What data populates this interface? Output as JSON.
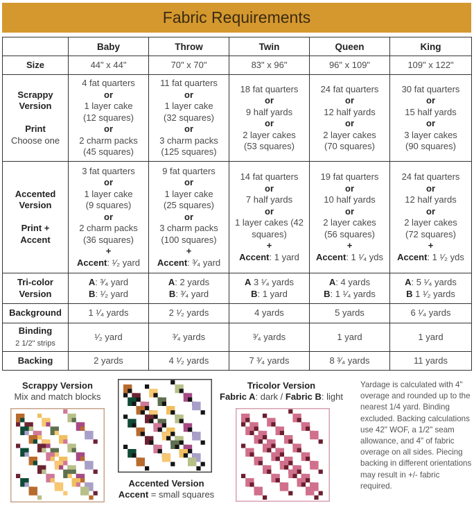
{
  "title": "Fabric Requirements",
  "colors": {
    "banner": "#D4982E"
  },
  "columns": [
    "",
    "Baby",
    "Throw",
    "Twin",
    "Queen",
    "King"
  ],
  "rows": [
    {
      "label": [
        [
          "Size"
        ]
      ],
      "h": 27,
      "cells": [
        [
          [
            "44\" x 44\""
          ]
        ],
        [
          [
            "70\" x 70\""
          ]
        ],
        [
          [
            "83\" x 96\""
          ]
        ],
        [
          [
            "96\" x 109\""
          ]
        ],
        [
          [
            "109\" x 122\""
          ]
        ]
      ]
    },
    {
      "label": [
        [
          "Scrappy"
        ],
        [
          "Version"
        ],
        [
          ""
        ],
        [
          "Print"
        ],
        [
          "Choose one",
          "sub"
        ]
      ],
      "h": 125,
      "cells": [
        [
          [
            "4 fat quarters"
          ],
          [
            "or",
            "b"
          ],
          [
            "1 layer cake"
          ],
          [
            "(12 squares)"
          ],
          [
            "or",
            "b"
          ],
          [
            "2 charm packs"
          ],
          [
            "(45 squares)"
          ]
        ],
        [
          [
            "11 fat quarters"
          ],
          [
            "or",
            "b"
          ],
          [
            "1 layer cake"
          ],
          [
            "(32 squares)"
          ],
          [
            "or",
            "b"
          ],
          [
            "3 charm packs"
          ],
          [
            "(125 squares)"
          ]
        ],
        [
          [
            "18 fat quarters"
          ],
          [
            "or",
            "b"
          ],
          [
            "9 half yards"
          ],
          [
            "or",
            "b"
          ],
          [
            "2 layer cakes"
          ],
          [
            "(53 squares)"
          ]
        ],
        [
          [
            "24 fat quarters"
          ],
          [
            "or",
            "b"
          ],
          [
            "12 half yards"
          ],
          [
            "or",
            "b"
          ],
          [
            "2 layer cakes"
          ],
          [
            "(70 squares)"
          ]
        ],
        [
          [
            "30 fat quarters"
          ],
          [
            "or",
            "b"
          ],
          [
            "15 half yards"
          ],
          [
            "or",
            "b"
          ],
          [
            "3 layer cakes"
          ],
          [
            "(90 squares)"
          ]
        ]
      ]
    },
    {
      "label": [
        [
          "Accented"
        ],
        [
          "Version"
        ],
        [
          ""
        ],
        [
          "Print +"
        ],
        [
          "Accent"
        ]
      ],
      "h": 161,
      "cells": [
        [
          [
            "3 fat quarters"
          ],
          [
            "or",
            "b"
          ],
          [
            "1 layer cake"
          ],
          [
            "(9 squares)"
          ],
          [
            "or",
            "b"
          ],
          [
            "2 charm packs"
          ],
          [
            "(36 squares)"
          ],
          [
            "+",
            "b"
          ],
          [
            "Accent",
            "b",
            ": ¹⁄₂ yard"
          ]
        ],
        [
          [
            "9 fat quarters"
          ],
          [
            "or",
            "b"
          ],
          [
            "1 layer cake"
          ],
          [
            "(25 squares)"
          ],
          [
            "or",
            "b"
          ],
          [
            "3 charm packs"
          ],
          [
            "(100 squares)"
          ],
          [
            "+",
            "b"
          ],
          [
            "Accent",
            "b",
            ": ³⁄₄ yard"
          ]
        ],
        [
          [
            "14 fat quarters"
          ],
          [
            "or",
            "b"
          ],
          [
            "7 half yards"
          ],
          [
            "or",
            "b"
          ],
          [
            "1 layer cakes (42"
          ],
          [
            "squares)"
          ],
          [
            "+",
            "b"
          ],
          [
            "Accent",
            "b",
            ": 1 yard"
          ]
        ],
        [
          [
            "19 fat quarters"
          ],
          [
            "or",
            "b"
          ],
          [
            "10 half yards"
          ],
          [
            "or",
            "b"
          ],
          [
            "2 layer cakes"
          ],
          [
            "(56 squares)"
          ],
          [
            "+",
            "b"
          ],
          [
            "Accent",
            "b",
            ": 1 ¹⁄₄ yds"
          ]
        ],
        [
          [
            "24 fat quarters"
          ],
          [
            "or",
            "b"
          ],
          [
            "12 half yards"
          ],
          [
            "or",
            "b"
          ],
          [
            "2 layer cakes"
          ],
          [
            "(72 squares)"
          ],
          [
            "+",
            "b"
          ],
          [
            "Accent",
            "b",
            ": 1 ¹⁄₂ yds"
          ]
        ]
      ]
    },
    {
      "label": [
        [
          "Tri-color"
        ],
        [
          "Version"
        ]
      ],
      "h": 44,
      "cells": [
        [
          [
            "A",
            "b",
            ": ³⁄₄ yard"
          ],
          [
            "B",
            "b",
            ": ¹⁄₂ yard"
          ]
        ],
        [
          [
            "A",
            "b",
            ": 2 yards"
          ],
          [
            "B",
            "b",
            ": ³⁄₄ yard"
          ]
        ],
        [
          [
            "A",
            "b",
            " 3 ¹⁄₄ yards"
          ],
          [
            "B",
            "b",
            ": 1 yard"
          ]
        ],
        [
          [
            "A",
            "b",
            ": 4 yards"
          ],
          [
            "B",
            "b",
            ": 1 ¹⁄₄ yards"
          ]
        ],
        [
          [
            "A",
            "b",
            ": 5 ¹⁄₄ yards"
          ],
          [
            "B",
            "b",
            " 1 ¹⁄₂ yards"
          ]
        ]
      ]
    },
    {
      "label": [
        [
          "Background"
        ]
      ],
      "h": 28,
      "cells": [
        [
          [
            "1 ¹⁄₄ yards"
          ]
        ],
        [
          [
            "2 ¹⁄₂ yards"
          ]
        ],
        [
          [
            "4 yards"
          ]
        ],
        [
          [
            "5 yards"
          ]
        ],
        [
          [
            "6 ¹⁄₄ yards"
          ]
        ]
      ]
    },
    {
      "label": [
        [
          "Binding"
        ],
        [
          "2 1/2\" strips",
          "sub small"
        ]
      ],
      "h": 41,
      "cells": [
        [
          [
            "¹⁄₂ yard"
          ]
        ],
        [
          [
            "³⁄₄ yards"
          ]
        ],
        [
          [
            "³⁄₄ yards"
          ]
        ],
        [
          [
            "1 yard"
          ]
        ],
        [
          [
            "1 yard"
          ]
        ]
      ]
    },
    {
      "label": [
        [
          "Backing"
        ]
      ],
      "h": 27,
      "cells": [
        [
          [
            "2 yards"
          ]
        ],
        [
          [
            "4 ¹⁄₂ yards"
          ]
        ],
        [
          [
            "7 ³⁄₄ yards"
          ]
        ],
        [
          [
            "8 ³⁄₄ yards"
          ]
        ],
        [
          [
            "11 yards"
          ]
        ]
      ]
    }
  ],
  "scrappy": {
    "title": "Scrappy Version",
    "subtitle": "Mix and match blocks"
  },
  "accented": {
    "title": "Accented Version",
    "subtitle_bold": "Accent",
    "subtitle": " = small squares"
  },
  "tricolor": {
    "title": "Tricolor Version",
    "a_bold": "Fabric A",
    "a": ": dark / ",
    "b_bold": "Fabric B",
    "b": ": light"
  },
  "note": "Yardage is calculated with 4\" overage and rounded up to the nearest 1/4 yard. Binding excluded. Backing calculations use 42\" WOF, a 1/2\" seam allowance, and 4\" of fabric overage on all sides. Piecing backing in different orientations may result in +/- fabric required.",
  "quilt_palette": [
    "#B86B2E",
    "#6B2233",
    "#0F4A36",
    "#A8A0C8",
    "#B8C08A",
    "#A64A86",
    "#F0C060",
    "#F7C872",
    "#5E7050",
    "#D07898"
  ],
  "tricolor_colors": {
    "dark": "#6B1E2E",
    "light": "#D0708C"
  },
  "accent_color": "#151515"
}
